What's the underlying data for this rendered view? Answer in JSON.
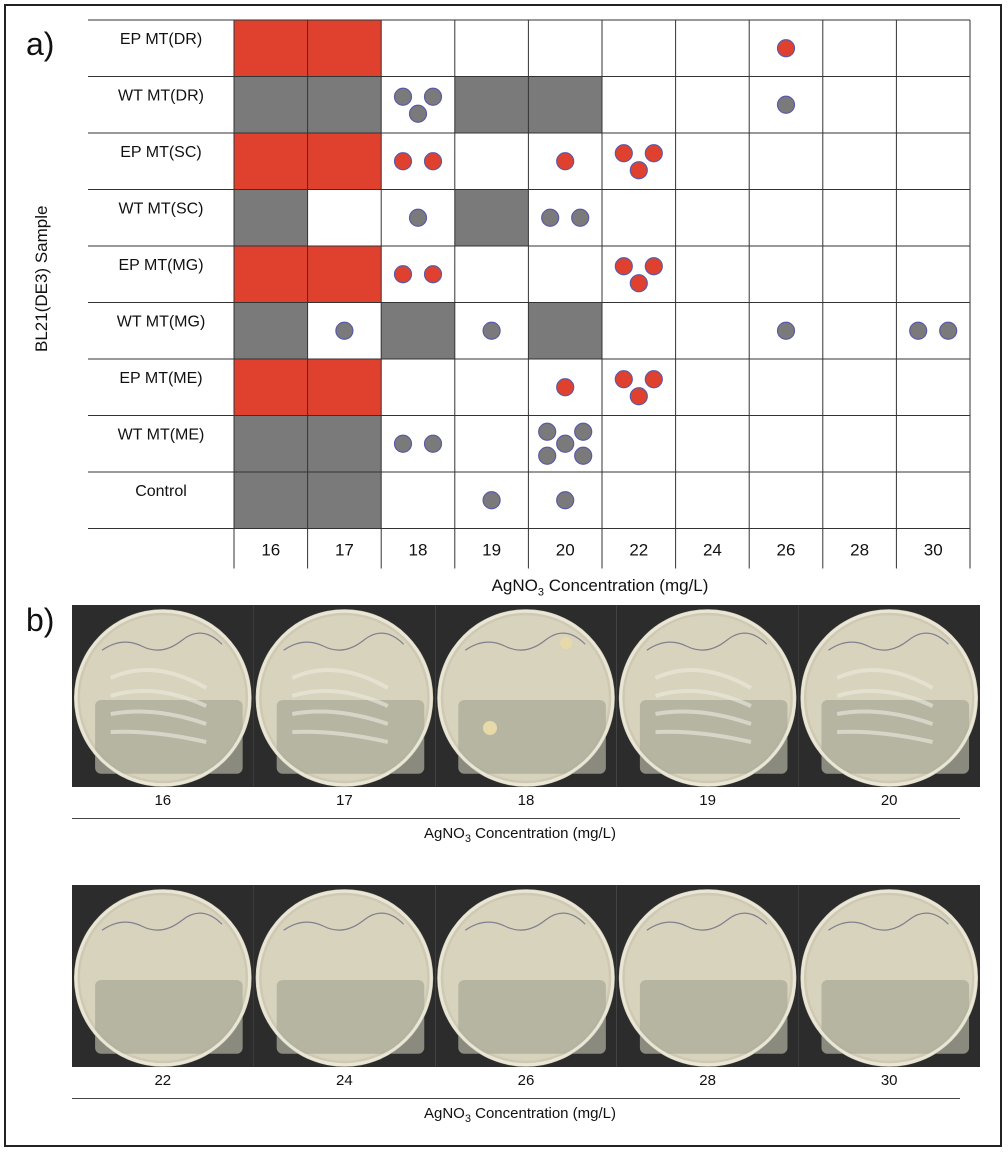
{
  "panel_a_label": "a)",
  "panel_b_label": "b)",
  "ylabel": "BL21(DE3) Sample",
  "xlabel_prefix": "AgNO",
  "xlabel_sub": "3",
  "xlabel_suffix": " Concentration (mg/L)",
  "colors": {
    "ep": "#e0412f",
    "wt": "#7a7a7a",
    "grid": "#333333",
    "dot_stroke": "#5a5aa8"
  },
  "chart_data": {
    "type": "table",
    "columns": [
      "16",
      "17",
      "18",
      "19",
      "20",
      "22",
      "24",
      "26",
      "28",
      "30"
    ],
    "rows": [
      {
        "label": "EP MT(DR)",
        "type": "ep",
        "cells": [
          "fill",
          "fill",
          0,
          0,
          0,
          0,
          0,
          1,
          0,
          0
        ]
      },
      {
        "label": "WT MT(DR)",
        "type": "wt",
        "cells": [
          "fill",
          "fill",
          3,
          "fill",
          "fill",
          0,
          0,
          1,
          0,
          0
        ]
      },
      {
        "label": "EP MT(SC)",
        "type": "ep",
        "cells": [
          "fill",
          "fill",
          2,
          0,
          1,
          3,
          0,
          0,
          0,
          0
        ]
      },
      {
        "label": "WT MT(SC)",
        "type": "wt",
        "cells": [
          "fill",
          0,
          1,
          "fill",
          2,
          0,
          0,
          0,
          0,
          0
        ]
      },
      {
        "label": "EP MT(MG)",
        "type": "ep",
        "cells": [
          "fill",
          "fill",
          2,
          0,
          0,
          3,
          0,
          0,
          0,
          0
        ]
      },
      {
        "label": "WT MT(MG)",
        "type": "wt",
        "cells": [
          "fill",
          1,
          "fill",
          1,
          "fill",
          0,
          0,
          1,
          0,
          2
        ]
      },
      {
        "label": "EP MT(ME)",
        "type": "ep",
        "cells": [
          "fill",
          "fill",
          0,
          0,
          1,
          3,
          0,
          0,
          0,
          0
        ]
      },
      {
        "label": "WT MT(ME)",
        "type": "wt",
        "cells": [
          "fill",
          "fill",
          2,
          0,
          5,
          0,
          0,
          0,
          0,
          0
        ]
      },
      {
        "label": "Control",
        "type": "wt",
        "cells": [
          "fill",
          "fill",
          0,
          1,
          1,
          0,
          0,
          0,
          0,
          0
        ]
      }
    ]
  },
  "plates_top": {
    "labels": [
      "16",
      "17",
      "18",
      "19",
      "20"
    ]
  },
  "plates_bottom": {
    "labels": [
      "22",
      "24",
      "26",
      "28",
      "30"
    ]
  }
}
